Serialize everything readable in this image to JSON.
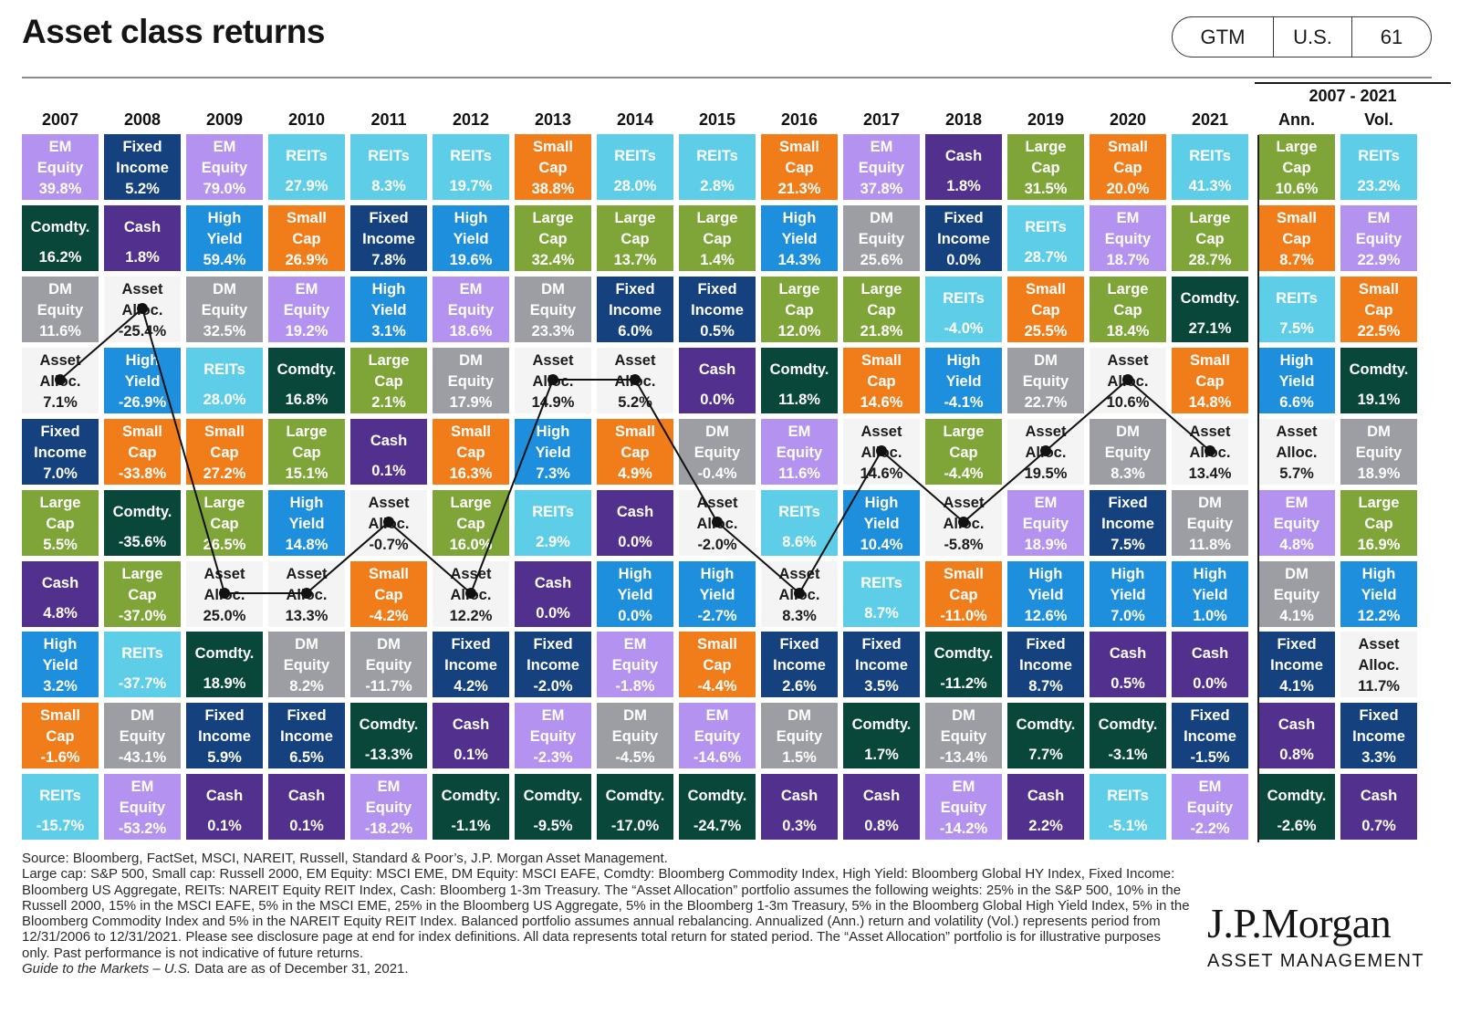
{
  "title": "Asset class returns",
  "badge": [
    "GTM",
    "U.S.",
    "61"
  ],
  "summary_header": {
    "range": "2007 - 2021",
    "ann": "Ann.",
    "vol": "Vol."
  },
  "colors": {
    "EM Equity": "#b392f0",
    "Fixed Income": "#15427f",
    "REITs": "#5ecde8",
    "Small Cap": "#f07d1a",
    "Cash": "#52318e",
    "Large Cap": "#7fa539",
    "Comdty.": "#09473a",
    "High Yield": "#1e8fdd",
    "DM Equity": "#9c9ea3",
    "Asset Alloc.": "#f4f4f4"
  },
  "chart_data": {
    "type": "table",
    "title": "Asset class returns",
    "columns": [
      "2007",
      "2008",
      "2009",
      "2010",
      "2011",
      "2012",
      "2013",
      "2014",
      "2015",
      "2016",
      "2017",
      "2018",
      "2019",
      "2020",
      "2021",
      "Ann.",
      "Vol."
    ],
    "column_group": "2007 - 2021",
    "ranked_cells": [
      [
        [
          "EM Equity",
          "39.8%"
        ],
        [
          "Comdty.",
          "16.2%"
        ],
        [
          "DM Equity",
          "11.6%"
        ],
        [
          "Asset Alloc.",
          "7.1%"
        ],
        [
          "Fixed Income",
          "7.0%"
        ],
        [
          "Large Cap",
          "5.5%"
        ],
        [
          "Cash",
          "4.8%"
        ],
        [
          "High Yield",
          "3.2%"
        ],
        [
          "Small Cap",
          "-1.6%"
        ],
        [
          "REITs",
          "-15.7%"
        ]
      ],
      [
        [
          "Fixed Income",
          "5.2%"
        ],
        [
          "Cash",
          "1.8%"
        ],
        [
          "Asset Alloc.",
          "-25.4%"
        ],
        [
          "High Yield",
          "-26.9%"
        ],
        [
          "Small Cap",
          "-33.8%"
        ],
        [
          "Comdty.",
          "-35.6%"
        ],
        [
          "Large Cap",
          "-37.0%"
        ],
        [
          "REITs",
          "-37.7%"
        ],
        [
          "DM Equity",
          "-43.1%"
        ],
        [
          "EM Equity",
          "-53.2%"
        ]
      ],
      [
        [
          "EM Equity",
          "79.0%"
        ],
        [
          "High Yield",
          "59.4%"
        ],
        [
          "DM Equity",
          "32.5%"
        ],
        [
          "REITs",
          "28.0%"
        ],
        [
          "Small Cap",
          "27.2%"
        ],
        [
          "Large Cap",
          "26.5%"
        ],
        [
          "Asset Alloc.",
          "25.0%"
        ],
        [
          "Comdty.",
          "18.9%"
        ],
        [
          "Fixed Income",
          "5.9%"
        ],
        [
          "Cash",
          "0.1%"
        ]
      ],
      [
        [
          "REITs",
          "27.9%"
        ],
        [
          "Small Cap",
          "26.9%"
        ],
        [
          "EM Equity",
          "19.2%"
        ],
        [
          "Comdty.",
          "16.8%"
        ],
        [
          "Large Cap",
          "15.1%"
        ],
        [
          "High Yield",
          "14.8%"
        ],
        [
          "Asset Alloc.",
          "13.3%"
        ],
        [
          "DM Equity",
          "8.2%"
        ],
        [
          "Fixed Income",
          "6.5%"
        ],
        [
          "Cash",
          "0.1%"
        ]
      ],
      [
        [
          "REITs",
          "8.3%"
        ],
        [
          "Fixed Income",
          "7.8%"
        ],
        [
          "High Yield",
          "3.1%"
        ],
        [
          "Large Cap",
          "2.1%"
        ],
        [
          "Cash",
          "0.1%"
        ],
        [
          "Asset Alloc.",
          "-0.7%"
        ],
        [
          "Small Cap",
          "-4.2%"
        ],
        [
          "DM Equity",
          "-11.7%"
        ],
        [
          "Comdty.",
          "-13.3%"
        ],
        [
          "EM Equity",
          "-18.2%"
        ]
      ],
      [
        [
          "REITs",
          "19.7%"
        ],
        [
          "High Yield",
          "19.6%"
        ],
        [
          "EM Equity",
          "18.6%"
        ],
        [
          "DM Equity",
          "17.9%"
        ],
        [
          "Small Cap",
          "16.3%"
        ],
        [
          "Large Cap",
          "16.0%"
        ],
        [
          "Asset Alloc.",
          "12.2%"
        ],
        [
          "Fixed Income",
          "4.2%"
        ],
        [
          "Cash",
          "0.1%"
        ],
        [
          "Comdty.",
          "-1.1%"
        ]
      ],
      [
        [
          "Small Cap",
          "38.8%"
        ],
        [
          "Large Cap",
          "32.4%"
        ],
        [
          "DM Equity",
          "23.3%"
        ],
        [
          "Asset Alloc.",
          "14.9%"
        ],
        [
          "High Yield",
          "7.3%"
        ],
        [
          "REITs",
          "2.9%"
        ],
        [
          "Cash",
          "0.0%"
        ],
        [
          "Fixed Income",
          "-2.0%"
        ],
        [
          "EM Equity",
          "-2.3%"
        ],
        [
          "Comdty.",
          "-9.5%"
        ]
      ],
      [
        [
          "REITs",
          "28.0%"
        ],
        [
          "Large Cap",
          "13.7%"
        ],
        [
          "Fixed Income",
          "6.0%"
        ],
        [
          "Asset Alloc.",
          "5.2%"
        ],
        [
          "Small Cap",
          "4.9%"
        ],
        [
          "Cash",
          "0.0%"
        ],
        [
          "High Yield",
          "0.0%"
        ],
        [
          "EM Equity",
          "-1.8%"
        ],
        [
          "DM Equity",
          "-4.5%"
        ],
        [
          "Comdty.",
          "-17.0%"
        ]
      ],
      [
        [
          "REITs",
          "2.8%"
        ],
        [
          "Large Cap",
          "1.4%"
        ],
        [
          "Fixed Income",
          "0.5%"
        ],
        [
          "Cash",
          "0.0%"
        ],
        [
          "DM Equity",
          "-0.4%"
        ],
        [
          "Asset Alloc.",
          "-2.0%"
        ],
        [
          "High Yield",
          "-2.7%"
        ],
        [
          "Small Cap",
          "-4.4%"
        ],
        [
          "EM Equity",
          "-14.6%"
        ],
        [
          "Comdty.",
          "-24.7%"
        ]
      ],
      [
        [
          "Small Cap",
          "21.3%"
        ],
        [
          "High Yield",
          "14.3%"
        ],
        [
          "Large Cap",
          "12.0%"
        ],
        [
          "Comdty.",
          "11.8%"
        ],
        [
          "EM Equity",
          "11.6%"
        ],
        [
          "REITs",
          "8.6%"
        ],
        [
          "Asset Alloc.",
          "8.3%"
        ],
        [
          "Fixed Income",
          "2.6%"
        ],
        [
          "DM Equity",
          "1.5%"
        ],
        [
          "Cash",
          "0.3%"
        ]
      ],
      [
        [
          "EM Equity",
          "37.8%"
        ],
        [
          "DM Equity",
          "25.6%"
        ],
        [
          "Large Cap",
          "21.8%"
        ],
        [
          "Small Cap",
          "14.6%"
        ],
        [
          "Asset Alloc.",
          "14.6%"
        ],
        [
          "High Yield",
          "10.4%"
        ],
        [
          "REITs",
          "8.7%"
        ],
        [
          "Fixed Income",
          "3.5%"
        ],
        [
          "Comdty.",
          "1.7%"
        ],
        [
          "Cash",
          "0.8%"
        ]
      ],
      [
        [
          "Cash",
          "1.8%"
        ],
        [
          "Fixed Income",
          "0.0%"
        ],
        [
          "REITs",
          "-4.0%"
        ],
        [
          "High Yield",
          "-4.1%"
        ],
        [
          "Large Cap",
          "-4.4%"
        ],
        [
          "Asset Alloc.",
          "-5.8%"
        ],
        [
          "Small Cap",
          "-11.0%"
        ],
        [
          "Comdty.",
          "-11.2%"
        ],
        [
          "DM Equity",
          "-13.4%"
        ],
        [
          "EM Equity",
          "-14.2%"
        ]
      ],
      [
        [
          "Large Cap",
          "31.5%"
        ],
        [
          "REITs",
          "28.7%"
        ],
        [
          "Small Cap",
          "25.5%"
        ],
        [
          "DM Equity",
          "22.7%"
        ],
        [
          "Asset Alloc.",
          "19.5%"
        ],
        [
          "EM Equity",
          "18.9%"
        ],
        [
          "High Yield",
          "12.6%"
        ],
        [
          "Fixed Income",
          "8.7%"
        ],
        [
          "Comdty.",
          "7.7%"
        ],
        [
          "Cash",
          "2.2%"
        ]
      ],
      [
        [
          "Small Cap",
          "20.0%"
        ],
        [
          "EM Equity",
          "18.7%"
        ],
        [
          "Large Cap",
          "18.4%"
        ],
        [
          "Asset Alloc.",
          "10.6%"
        ],
        [
          "DM Equity",
          "8.3%"
        ],
        [
          "Fixed Income",
          "7.5%"
        ],
        [
          "High Yield",
          "7.0%"
        ],
        [
          "Cash",
          "0.5%"
        ],
        [
          "Comdty.",
          "-3.1%"
        ],
        [
          "REITs",
          "-5.1%"
        ]
      ],
      [
        [
          "REITs",
          "41.3%"
        ],
        [
          "Large Cap",
          "28.7%"
        ],
        [
          "Comdty.",
          "27.1%"
        ],
        [
          "Small Cap",
          "14.8%"
        ],
        [
          "Asset Alloc.",
          "13.4%"
        ],
        [
          "DM Equity",
          "11.8%"
        ],
        [
          "High Yield",
          "1.0%"
        ],
        [
          "Cash",
          "0.0%"
        ],
        [
          "Fixed Income",
          "-1.5%"
        ],
        [
          "EM Equity",
          "-2.2%"
        ]
      ],
      [
        [
          "Large Cap",
          "10.6%"
        ],
        [
          "Small Cap",
          "8.7%"
        ],
        [
          "REITs",
          "7.5%"
        ],
        [
          "High Yield",
          "6.6%"
        ],
        [
          "Asset Alloc.",
          "5.7%"
        ],
        [
          "EM Equity",
          "4.8%"
        ],
        [
          "DM Equity",
          "4.1%"
        ],
        [
          "Fixed Income",
          "4.1%"
        ],
        [
          "Cash",
          "0.8%"
        ],
        [
          "Comdty.",
          "-2.6%"
        ]
      ],
      [
        [
          "REITs",
          "23.2%"
        ],
        [
          "EM Equity",
          "22.9%"
        ],
        [
          "Small Cap",
          "22.5%"
        ],
        [
          "Comdty.",
          "19.1%"
        ],
        [
          "DM Equity",
          "18.9%"
        ],
        [
          "Large Cap",
          "16.9%"
        ],
        [
          "High Yield",
          "12.2%"
        ],
        [
          "Asset Alloc.",
          "11.7%"
        ],
        [
          "Fixed Income",
          "3.3%"
        ],
        [
          "Cash",
          "0.7%"
        ]
      ]
    ],
    "asset_alloc_line": {
      "series": "Asset Alloc.",
      "columns": [
        "2007",
        "2008",
        "2009",
        "2010",
        "2011",
        "2012",
        "2013",
        "2014",
        "2015",
        "2016",
        "2017",
        "2018",
        "2019",
        "2020",
        "2021"
      ]
    }
  },
  "footnote": {
    "source": "Source: Bloomberg, FactSet, MSCI, NAREIT, Russell, Standard & Poor’s, J.P. Morgan Asset Management.",
    "body": "Large cap: S&P 500, Small cap: Russell 2000, EM Equity: MSCI EME, DM Equity: MSCI EAFE, Comdty: Bloomberg Commodity Index, High Yield: Bloomberg Global HY Index, Fixed Income: Bloomberg US Aggregate, REITs: NAREIT Equity REIT Index, Cash: Bloomberg 1-3m Treasury. The “Asset Allocation” portfolio assumes the following weights: 25% in the S&P 500, 10% in the Russell 2000, 15% in the MSCI EAFE, 5% in the MSCI EME, 25% in the Bloomberg US Aggregate, 5% in the Bloomberg 1-3m Treasury, 5% in the Bloomberg Global High Yield Index, 5% in the Bloomberg Commodity Index and 5% in the NAREIT Equity REIT Index. Balanced portfolio assumes annual rebalancing. Annualized (Ann.) return and volatility (Vol.) represents period from 12/31/2006 to 12/31/2021. Please see disclosure page at end for index definitions. All data represents total return for stated period. The “Asset Allocation” portfolio is for illustrative purposes only. Past performance is not indicative of future returns.",
    "guide_italic": "Guide to the Markets – U.S.",
    "guide_rest": " Data are as of December 31, 2021."
  },
  "logo": {
    "wordmark": "J.P.Morgan",
    "sub": "ASSET MANAGEMENT"
  }
}
